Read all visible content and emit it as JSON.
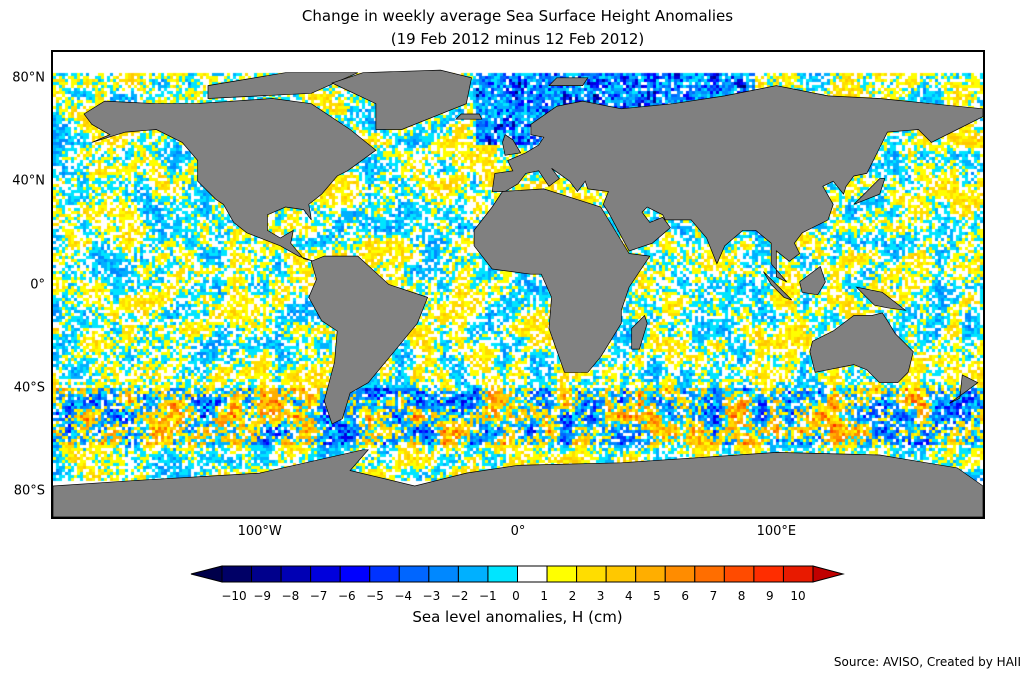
{
  "title": {
    "line1": "Change in weekly average Sea Surface Height Anomalies",
    "line2": "(19 Feb 2012 minus 12 Feb 2012)"
  },
  "map": {
    "lat_ticks": [
      {
        "value": 80,
        "label": "80°N"
      },
      {
        "value": 40,
        "label": "40°N"
      },
      {
        "value": 0,
        "label": "0°"
      },
      {
        "value": -40,
        "label": "40°S"
      },
      {
        "value": -80,
        "label": "80°S"
      }
    ],
    "lon_ticks": [
      {
        "value": -100,
        "label": "100°W"
      },
      {
        "value": 0,
        "label": "0°"
      },
      {
        "value": 100,
        "label": "100°E"
      }
    ],
    "land_color": "#808080"
  },
  "colorbar": {
    "labels": [
      "−10",
      "−9",
      "−8",
      "−7",
      "−6",
      "−5",
      "−4",
      "−3",
      "−2",
      "−1",
      "0",
      "1",
      "2",
      "3",
      "4",
      "5",
      "6",
      "7",
      "8",
      "9",
      "10"
    ],
    "colors": [
      "#000066",
      "#00008c",
      "#0000b4",
      "#0000dc",
      "#0000ff",
      "#0033ff",
      "#0066ff",
      "#0088ff",
      "#00b0ff",
      "#00e5ff",
      "#ffffff",
      "#ffff00",
      "#ffdd00",
      "#ffc800",
      "#ffae00",
      "#ff8c00",
      "#ff6e00",
      "#ff4b00",
      "#ff2d00",
      "#e81a00",
      "#d00000"
    ],
    "under_color": "#00004a",
    "over_color": "#c00000",
    "label": "Sea level anomalies, H (cm)"
  },
  "source": "Source: AVISO, Created by HAII"
}
